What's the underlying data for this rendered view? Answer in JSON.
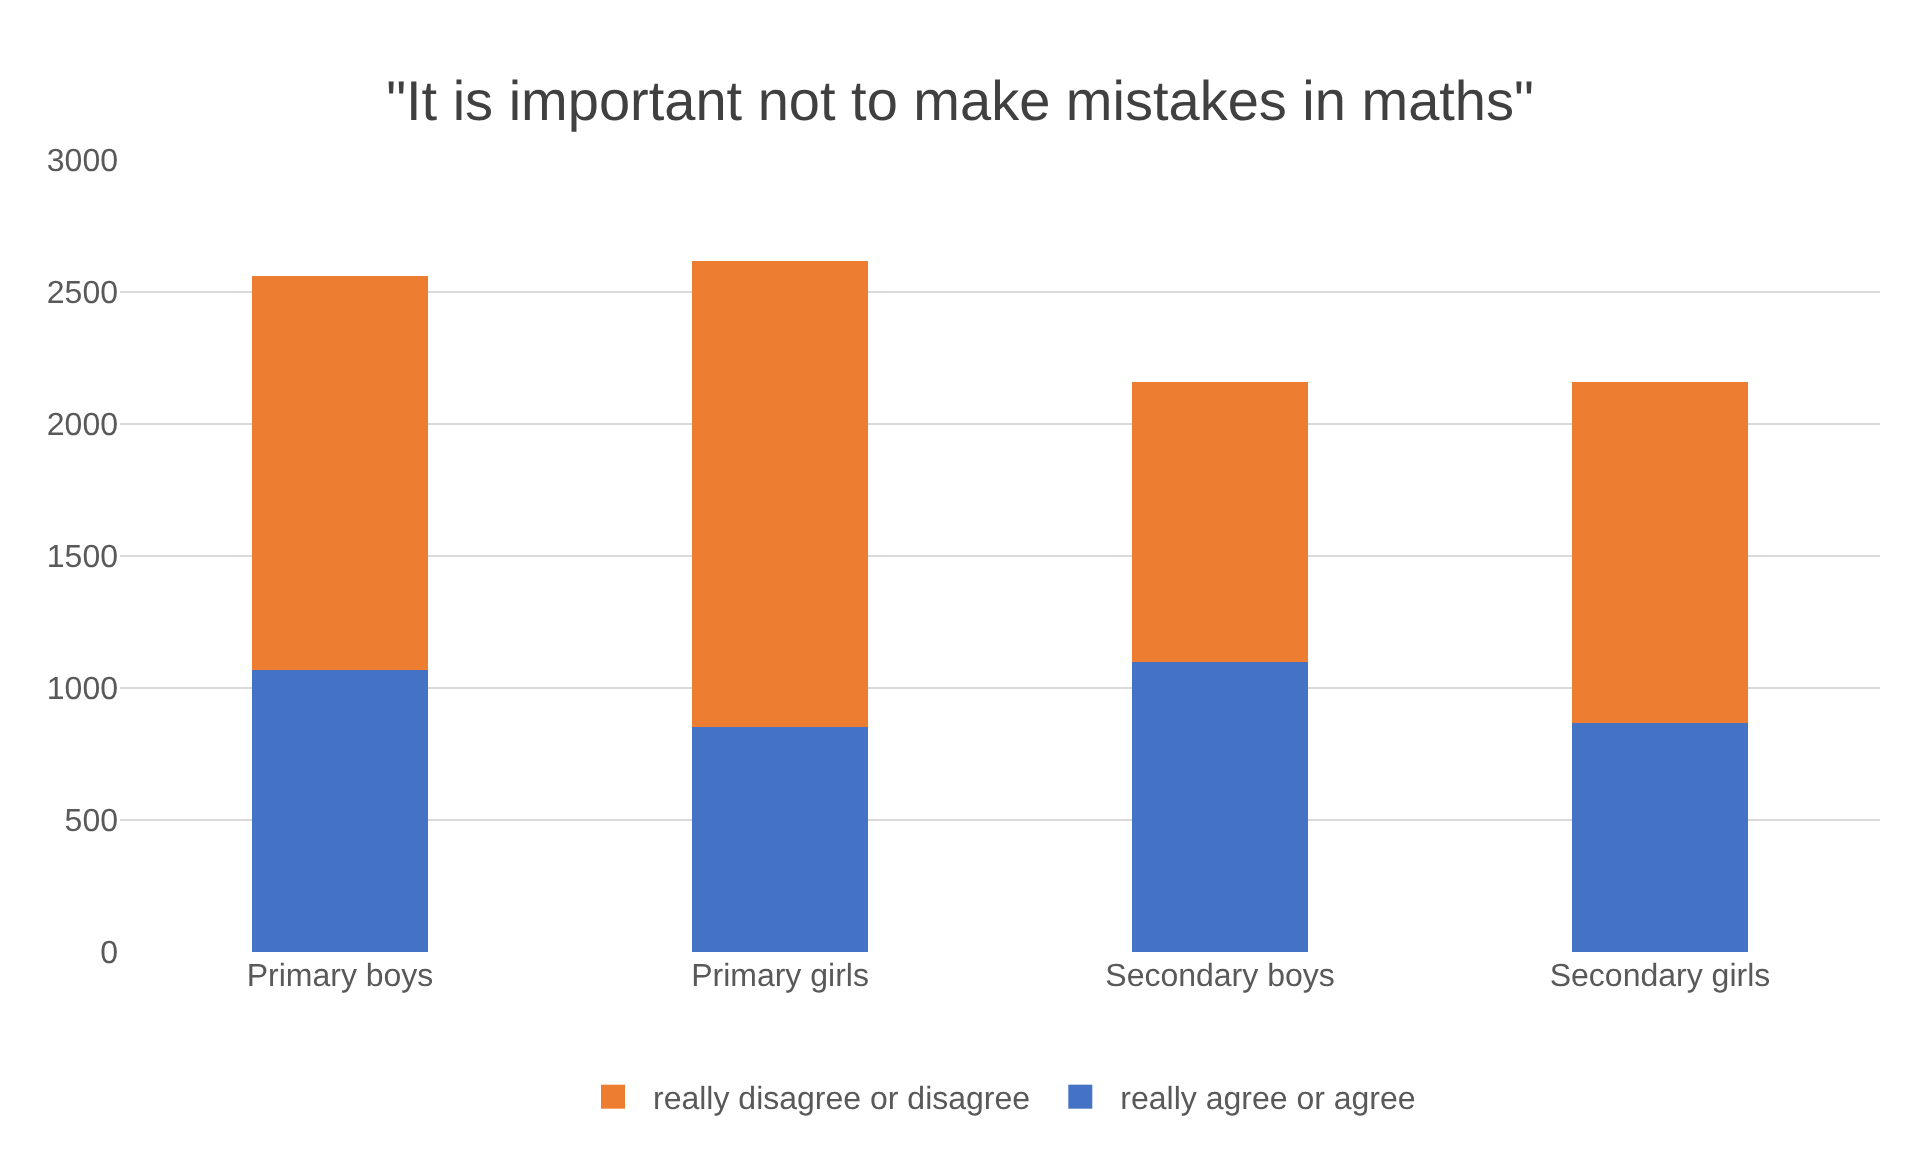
{
  "chart_data": {
    "type": "bar",
    "title": "\"It is important not to make mistakes in maths\"",
    "categories": [
      "Primary boys",
      "Primary girls",
      "Secondary boys",
      "Secondary girls"
    ],
    "series": [
      {
        "name": "really agree or agree",
        "color": "#4472c4",
        "values": [
          1069,
          851,
          1100,
          868
        ]
      },
      {
        "name": "really disagree or disagree",
        "color": "#ed7d31",
        "values": [
          1493,
          1765,
          1061,
          1290
        ]
      }
    ],
    "stacked": true,
    "ylim": [
      0,
      3000
    ],
    "yticks": [
      0,
      500,
      1000,
      1500,
      2000,
      2500,
      3000
    ],
    "grid": "y",
    "legend": "bottom"
  }
}
